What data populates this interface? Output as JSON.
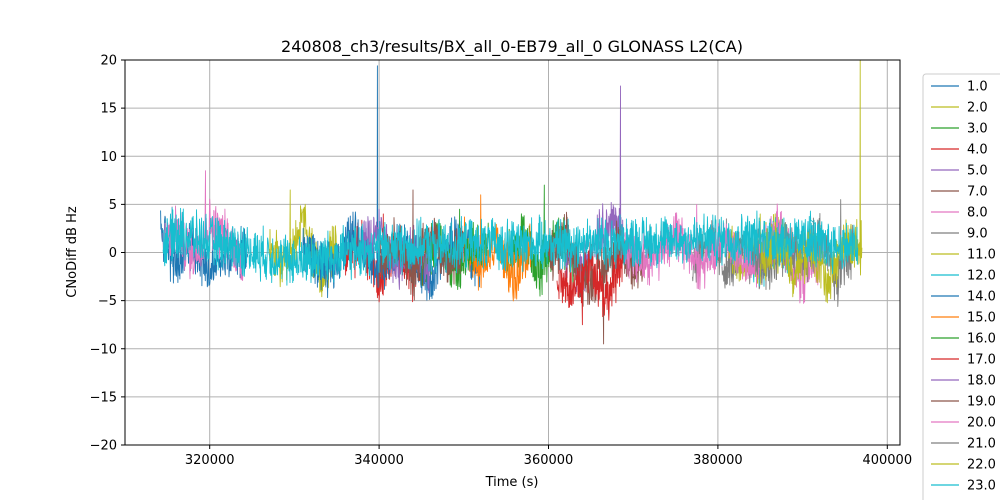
{
  "chart_data": {
    "type": "line",
    "title": "240808_ch3/results/BX_all_0-EB79_all_0 GLONASS L2(CA)",
    "xlabel": "Time (s)",
    "ylabel": "CNoDiff dB Hz",
    "xlim": [
      310000,
      401500
    ],
    "ylim": [
      -20,
      20
    ],
    "xticks": [
      320000,
      340000,
      360000,
      380000,
      400000
    ],
    "xtick_labels": [
      "320000",
      "340000",
      "360000",
      "380000",
      "400000"
    ],
    "yticks": [
      -20,
      -15,
      -10,
      -5,
      0,
      5,
      10,
      15,
      20
    ],
    "ytick_labels": [
      "−20",
      "−15",
      "−10",
      "−5",
      "0",
      "5",
      "10",
      "15",
      "20"
    ],
    "grid": true,
    "legend_position": "outside-right",
    "colors": [
      "#1f77b4",
      "#bcbd22",
      "#2ca02c",
      "#d62728",
      "#9467bd",
      "#8c564b",
      "#e377c2",
      "#7f7f7f",
      "#bcbd22",
      "#17becf",
      "#1f77b4",
      "#ff7f0e",
      "#2ca02c",
      "#d62728",
      "#9467bd",
      "#8c564b",
      "#e377c2",
      "#7f7f7f",
      "#bcbd22",
      "#17becf"
    ],
    "series": [
      {
        "name": "1.0",
        "x": [
          314200,
          316000,
          318000,
          320000,
          322000,
          324500
        ],
        "y": [
          2.5,
          -1.5,
          1.0,
          -2.0,
          0.5,
          -0.5
        ],
        "peak": [
          315500,
          3.0
        ]
      },
      {
        "name": "2.0",
        "x": [
          327000,
          329000,
          331000,
          333000,
          335000
        ],
        "y": [
          0.5,
          -2.0,
          3.5,
          -3.0,
          1.0
        ],
        "peak": [
          329500,
          6.5
        ]
      },
      {
        "name": "3.0",
        "x": [
          355000,
          357000,
          359000,
          361000,
          363000
        ],
        "y": [
          -0.5,
          1.5,
          -2.0,
          2.0,
          -1.0
        ],
        "peak": [
          359500,
          7.0
        ]
      },
      {
        "name": "4.0",
        "x": [
          336000,
          338000,
          340000,
          342000,
          344000,
          346000
        ],
        "y": [
          -1.0,
          1.0,
          -3.0,
          0.5,
          -2.5,
          1.0
        ],
        "peak": [
          340500,
          4.0
        ]
      },
      {
        "name": "5.0",
        "x": [
          362000,
          364000,
          366000,
          368000,
          370000
        ],
        "y": [
          0.0,
          -2.0,
          2.5,
          3.0,
          -1.0
        ],
        "peak": [
          368500,
          17.3
        ]
      },
      {
        "name": "7.0",
        "x": [
          360000,
          362000,
          364000,
          366000,
          368000,
          370000,
          372000
        ],
        "y": [
          -1.0,
          1.5,
          -3.0,
          -2.5,
          1.0,
          -2.0,
          0.5
        ],
        "peak": [
          366500,
          -9.5
        ]
      },
      {
        "name": "8.0",
        "x": [
          314500,
          316000,
          318000,
          320000,
          322000,
          324000
        ],
        "y": [
          1.0,
          2.5,
          -0.5,
          3.0,
          1.5,
          -1.0
        ],
        "peak": [
          319500,
          8.5
        ]
      },
      {
        "name": "9.0",
        "x": [
          377000,
          379000,
          381000,
          383000,
          385000,
          387000
        ],
        "y": [
          -1.0,
          1.5,
          -2.0,
          0.5,
          -1.5,
          1.0
        ],
        "peak": [
          381000,
          3.5
        ]
      },
      {
        "name": "11.0",
        "x": [
          381000,
          383000,
          385000,
          387000,
          389000
        ],
        "y": [
          1.5,
          -2.0,
          0.0,
          2.0,
          -1.0
        ],
        "peak": [
          385000,
          4.0
        ]
      },
      {
        "name": "12.0",
        "x": [
          383000,
          385000,
          387000,
          389000,
          391000
        ],
        "y": [
          0.5,
          -1.0,
          1.0,
          -0.5,
          2.0
        ],
        "peak": [
          391500,
          3.0
        ]
      },
      {
        "name": "14.0",
        "x": [
          331000,
          334000,
          337000,
          340000,
          343000,
          346000,
          349000,
          352000
        ],
        "y": [
          0.5,
          -2.0,
          2.0,
          -1.5,
          1.0,
          -3.0,
          1.5,
          -1.0
        ],
        "peak": [
          339800,
          19.4
        ]
      },
      {
        "name": "15.0",
        "x": [
          350000,
          352000,
          354000,
          356000,
          358000
        ],
        "y": [
          2.0,
          -2.0,
          1.0,
          -3.0,
          0.5
        ],
        "peak": [
          352000,
          6.0
        ]
      },
      {
        "name": "16.0",
        "x": [
          345000,
          347000,
          349000,
          351000,
          353000
        ],
        "y": [
          -1.0,
          1.5,
          -2.5,
          0.5,
          1.0
        ],
        "peak": [
          349500,
          4.5
        ]
      },
      {
        "name": "17.0",
        "x": [
          361000,
          363000,
          365000,
          367000,
          369000
        ],
        "y": [
          -2.0,
          -4.0,
          -1.0,
          -5.0,
          0.5
        ],
        "peak": [
          364000,
          -7.5
        ]
      },
      {
        "name": "18.0",
        "x": [
          338000,
          340000,
          342000,
          344000,
          346000
        ],
        "y": [
          0.5,
          2.0,
          -1.5,
          1.0,
          -2.0
        ],
        "peak": [
          340000,
          4.5
        ]
      },
      {
        "name": "19.0",
        "x": [
          340000,
          342000,
          344000,
          346000,
          348000,
          350000
        ],
        "y": [
          -1.0,
          1.0,
          -2.5,
          2.0,
          -1.0,
          0.5
        ],
        "peak": [
          344000,
          6.5
        ]
      },
      {
        "name": "20.0",
        "x": [
          369000,
          372000,
          375000,
          378000,
          381000,
          384000,
          387000,
          390000,
          393000
        ],
        "y": [
          0.5,
          -1.0,
          2.0,
          -1.5,
          1.5,
          -2.0,
          2.5,
          -3.0,
          1.0
        ],
        "peak": [
          377500,
          5.0
        ]
      },
      {
        "name": "21.0",
        "x": [
          384000,
          386000,
          388000,
          390000,
          392000,
          394000,
          396000
        ],
        "y": [
          0.5,
          -2.0,
          1.0,
          -1.5,
          2.0,
          -3.0,
          0.5
        ],
        "peak": [
          394500,
          5.5
        ]
      },
      {
        "name": "22.0",
        "x": [
          385000,
          387000,
          389000,
          391000,
          393000,
          395000,
          397000
        ],
        "y": [
          -1.0,
          1.0,
          -2.0,
          0.5,
          -3.0,
          1.0,
          0.5
        ],
        "peak": [
          396800,
          20.0
        ]
      },
      {
        "name": "23.0",
        "x": [
          314500,
          316000,
          330000,
          340000,
          386000,
          396500
        ],
        "y": [
          1.0,
          2.0,
          -1.0,
          0.5,
          1.5,
          0.5
        ],
        "peak": [
          315000,
          3.5
        ]
      }
    ]
  }
}
